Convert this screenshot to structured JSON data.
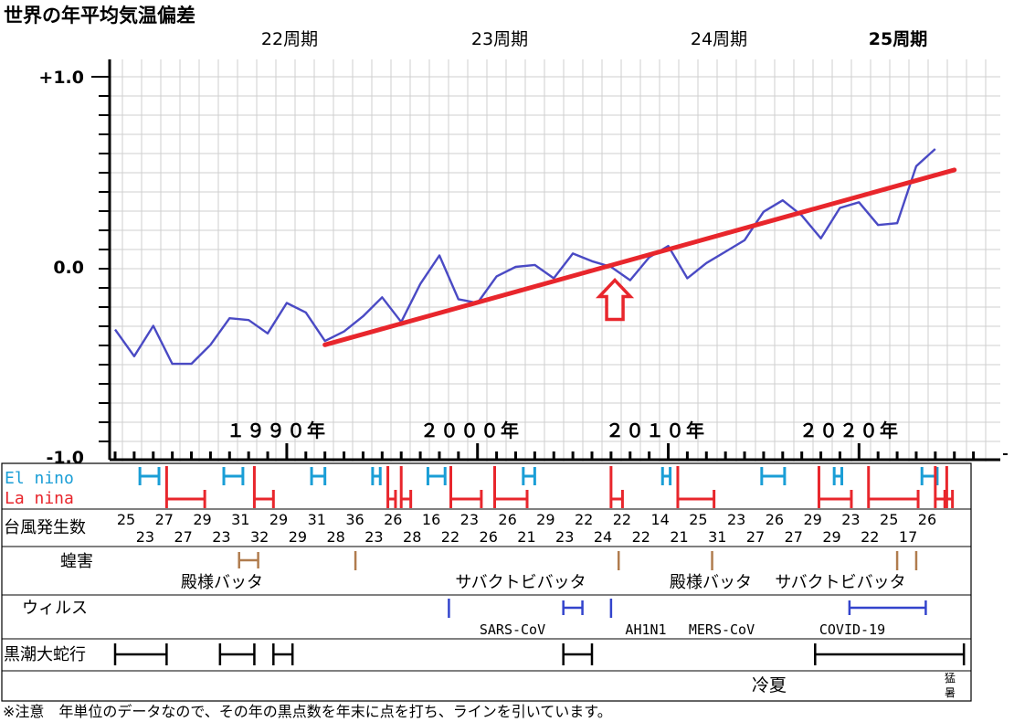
{
  "chart_data": {
    "type": "line",
    "title": "世界の年平均気温偏差",
    "cycles": [
      "22周期",
      "23周期",
      "24周期",
      "25周期"
    ],
    "y_ticks": [
      "+1.0",
      "0.0",
      "-1.0"
    ],
    "ylim": [
      -1.0,
      1.0
    ],
    "decades": [
      "１９９０年",
      "２０００年",
      "２０１０年",
      "２０２０年"
    ],
    "x": [
      1981,
      1982,
      1983,
      1984,
      1985,
      1986,
      1987,
      1988,
      1989,
      1990,
      1991,
      1992,
      1993,
      1994,
      1995,
      1996,
      1997,
      1998,
      1999,
      2000,
      2001,
      2002,
      2003,
      2004,
      2005,
      2006,
      2007,
      2008,
      2009,
      2010,
      2011,
      2012,
      2013,
      2014,
      2015,
      2016,
      2017,
      2018,
      2019,
      2020,
      2021,
      2022,
      2023,
      2024
    ],
    "series": [
      {
        "values": [
          -0.33,
          -0.47,
          -0.31,
          -0.51,
          -0.51,
          -0.41,
          -0.27,
          -0.28,
          -0.35,
          -0.19,
          -0.24,
          -0.39,
          -0.34,
          -0.26,
          -0.16,
          -0.29,
          -0.09,
          0.06,
          -0.17,
          -0.19,
          -0.05,
          0.0,
          0.01,
          -0.06,
          0.07,
          0.03,
          0.0,
          -0.07,
          0.05,
          0.11,
          -0.06,
          0.02,
          0.08,
          0.14,
          0.29,
          0.35,
          0.27,
          0.15,
          0.31,
          0.34,
          0.22,
          0.23,
          0.53,
          0.62
        ]
      },
      {
        "values": [
          -0.41,
          0.51
        ],
        "x": [
          1992.0,
          2025.0
        ],
        "trend": true
      }
    ],
    "arrow_year": 2007
  },
  "enso": {
    "el_label": "El nino",
    "la_label": "La nina",
    "el_color": "#1a9ed6",
    "la_color": "#e8262c",
    "el": [
      [
        1982.3,
        1983.3
      ],
      [
        1986.7,
        1987.7
      ],
      [
        1991.3,
        1992.0
      ],
      [
        1994.5,
        1994.9
      ],
      [
        1997.4,
        1998.3
      ],
      [
        2002.4,
        2003.0
      ],
      [
        2009.7,
        2010.1
      ],
      [
        2014.9,
        2016.1
      ],
      [
        2018.7,
        2019.1
      ],
      [
        2023.3,
        2024.1
      ]
    ],
    "la": [
      [
        1983.7,
        1985.7
      ],
      [
        1988.3,
        1989.3
      ],
      [
        1995.3,
        1995.7
      ],
      [
        1996.0,
        1996.5
      ],
      [
        1998.6,
        2000.2
      ],
      [
        2000.9,
        2002.6
      ],
      [
        2007.0,
        2007.6
      ],
      [
        2010.5,
        2012.4
      ],
      [
        2017.9,
        2019.6
      ],
      [
        2020.5,
        2023.1
      ],
      [
        2024.0,
        2024.5
      ],
      [
        2024.6,
        2024.9
      ]
    ]
  },
  "typhoon": {
    "label": "台風発生数",
    "counts": [
      "25",
      "23",
      "27",
      "27",
      "29",
      "23",
      "31",
      "32",
      "29",
      "29",
      "31",
      "28",
      "36",
      "23",
      "26",
      "28",
      "16",
      "22",
      "23",
      "26",
      "26",
      "21",
      "29",
      "23",
      "22",
      "24",
      "22",
      "22",
      "14",
      "21",
      "25",
      "31",
      "23",
      "27",
      "26",
      "27",
      "29",
      "29",
      "23",
      "22",
      "25",
      "17",
      "26"
    ]
  },
  "locust": {
    "label": "蝗害",
    "color": "#b07c4e",
    "marks": [
      1993.6,
      2007.4,
      2012.3,
      2022.0,
      2023.0
    ],
    "bracket": [
      1987.5,
      1988.5
    ],
    "names": [
      "殿様バッタ",
      "サバクトビバッタ",
      "殿様バッタ",
      "サバクトビバッタ"
    ]
  },
  "virus": {
    "label": "ウィルス",
    "color": "#3344cc",
    "marks": [
      1998.5,
      2007.0
    ],
    "ranges": [
      [
        2004.5,
        2005.5
      ],
      [
        2019.5,
        2023.5
      ]
    ],
    "names": [
      "SARS-CoV",
      "AH1N1",
      "MERS-CoV",
      "COVID-19"
    ]
  },
  "kuroshio": {
    "label": "黒潮大蛇行",
    "ranges": [
      [
        1981.0,
        1983.7
      ],
      [
        1986.5,
        1988.3
      ],
      [
        1989.3,
        1990.3
      ],
      [
        2004.5,
        2006.0
      ],
      [
        2017.7,
        2025.5
      ]
    ]
  },
  "cool_summer": {
    "text": "冷夏"
  },
  "heat": {
    "text": "猛暑"
  },
  "note": "※注意　年単位のデータなので、その年の黒点数を年末に点を打ち、ラインを引いています。"
}
